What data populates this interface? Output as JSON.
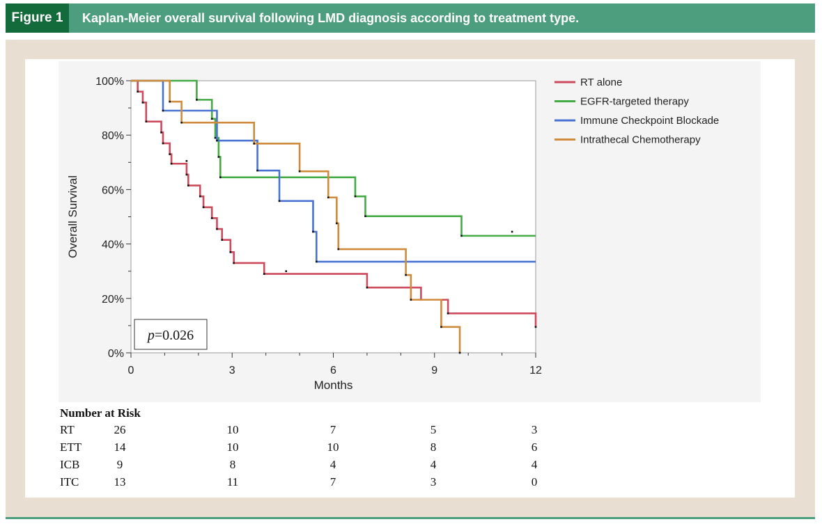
{
  "figure": {
    "label": "Figure 1",
    "title": "Kaplan-Meier overall survival following LMD diagnosis according to treatment type."
  },
  "chart_data": {
    "type": "line",
    "subtype": "kaplan-meier step",
    "xlabel": "Months",
    "ylabel": "Overall Survival",
    "xlim": [
      0,
      12
    ],
    "ylim": [
      0,
      100
    ],
    "x_ticks": [
      "0",
      "3",
      "6",
      "9",
      "12"
    ],
    "y_ticks": [
      "0%",
      "20%",
      "40%",
      "60%",
      "80%",
      "100%"
    ],
    "grid": false,
    "legend_position": "right",
    "annotation": {
      "p_label": "p",
      "p_value": "=0.026"
    },
    "series": [
      {
        "name": "RT alone",
        "color": "#cc4a5c",
        "steps": [
          [
            0,
            100
          ],
          [
            0.2,
            96
          ],
          [
            0.35,
            92
          ],
          [
            0.45,
            85
          ],
          [
            0.9,
            81
          ],
          [
            0.95,
            77
          ],
          [
            1.15,
            73
          ],
          [
            1.2,
            69.5
          ],
          [
            1.65,
            65.5
          ],
          [
            1.7,
            61.5
          ],
          [
            2.05,
            57.5
          ],
          [
            2.15,
            53.5
          ],
          [
            2.4,
            49.5
          ],
          [
            2.55,
            45.5
          ],
          [
            2.7,
            41.5
          ],
          [
            2.95,
            37
          ],
          [
            3.05,
            33
          ],
          [
            3.95,
            29
          ],
          [
            7,
            24
          ],
          [
            8.6,
            19.5
          ],
          [
            9.4,
            14.5
          ],
          [
            12,
            9.5
          ]
        ],
        "end_x": 12,
        "censored": [
          [
            1.65,
            70.5
          ],
          [
            4.6,
            30
          ]
        ]
      },
      {
        "name": "EGFR-targeted therapy",
        "color": "#44aa44",
        "steps": [
          [
            0,
            100
          ],
          [
            1.95,
            93
          ],
          [
            2.4,
            86
          ],
          [
            2.5,
            79
          ],
          [
            2.6,
            72
          ],
          [
            2.65,
            64.5
          ],
          [
            6.65,
            57.5
          ],
          [
            6.95,
            50.2
          ],
          [
            9.8,
            43
          ]
        ],
        "end_x": 12,
        "censored": [
          [
            11.3,
            44.5
          ]
        ]
      },
      {
        "name": "Immune Checkpoint Blockade",
        "color": "#4772d2",
        "steps": [
          [
            0,
            100
          ],
          [
            0.95,
            89
          ],
          [
            2.55,
            78
          ],
          [
            3.75,
            67
          ],
          [
            4.4,
            55.8
          ],
          [
            5.4,
            44.5
          ],
          [
            5.5,
            33.5
          ]
        ],
        "end_x": 12,
        "censored": []
      },
      {
        "name": "Intrathecal Chemotherapy",
        "color": "#d08a3b",
        "steps": [
          [
            0,
            100
          ],
          [
            1.15,
            92.3
          ],
          [
            1.5,
            84.6
          ],
          [
            3.65,
            76.9
          ],
          [
            5.0,
            66.7
          ],
          [
            5.85,
            57.1
          ],
          [
            6.1,
            47.6
          ],
          [
            6.15,
            38.1
          ],
          [
            8.15,
            28.6
          ],
          [
            8.3,
            19.5
          ],
          [
            9.2,
            9.5
          ],
          [
            9.75,
            0
          ]
        ],
        "end_x": 9.75,
        "censored": []
      }
    ],
    "risk_table": {
      "title": "Number at Risk",
      "rows": [
        {
          "label": "RT",
          "values": [
            "26",
            "10",
            "7",
            "5",
            "3"
          ]
        },
        {
          "label": "ETT",
          "values": [
            "14",
            "10",
            "10",
            "8",
            "6"
          ]
        },
        {
          "label": "ICB",
          "values": [
            "9",
            "8",
            "4",
            "4",
            "4"
          ]
        },
        {
          "label": "ITC",
          "values": [
            "13",
            "11",
            "7",
            "3",
            "0"
          ]
        }
      ]
    }
  }
}
